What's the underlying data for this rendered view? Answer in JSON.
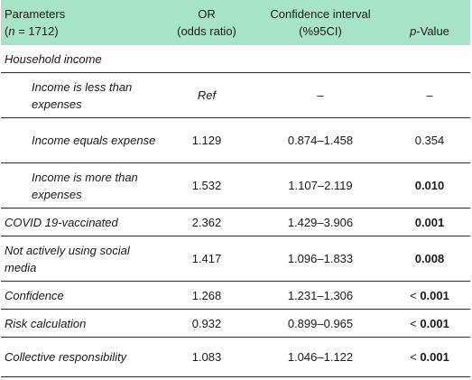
{
  "header": {
    "col1_line1": "Parameters",
    "col1_line2_n": "n",
    "col1_line2_rest": " = 1712)",
    "col1_line2_open": "(",
    "col2_line1": "OR",
    "col2_line2": "(odds ratio)",
    "col3_line1": "Confidence interval",
    "col3_line2": "(%95CI)",
    "col4_p": "p",
    "col4_rest": "-Value"
  },
  "rows": [
    {
      "label": "Household income",
      "or": "",
      "ci": "",
      "p_prefix": "",
      "p": "",
      "bold": false,
      "indent": false
    },
    {
      "label": "Income is less than expenses",
      "or": "Ref",
      "ci": "–",
      "p_prefix": "",
      "p": "–",
      "bold": false,
      "indent": true
    },
    {
      "label": "Income equals expense",
      "or": "1.129",
      "ci": "0.874–1.458",
      "p_prefix": "",
      "p": "0.354",
      "bold": false,
      "indent": true
    },
    {
      "label": "Income is more than expenses",
      "or": "1.532",
      "ci": "1.107–2.119",
      "p_prefix": "",
      "p": "0.010",
      "bold": true,
      "indent": true
    },
    {
      "label": "COVID 19-vaccinated",
      "or": "2.362",
      "ci": "1.429–3.906",
      "p_prefix": "",
      "p": "0.001",
      "bold": true,
      "indent": false
    },
    {
      "label": "Not actively using social media",
      "or": "1.417",
      "ci": "1.096–1.833",
      "p_prefix": "",
      "p": "0.008",
      "bold": true,
      "indent": false
    },
    {
      "label": "Confidence",
      "or": "1.268",
      "ci": "1.231–1.306",
      "p_prefix": "< ",
      "p": "0.001",
      "bold": true,
      "indent": false
    },
    {
      "label": "Risk calculation",
      "or": "0.932",
      "ci": "0.899–0.965",
      "p_prefix": "< ",
      "p": "0.001",
      "bold": true,
      "indent": false
    },
    {
      "label": "Collective responsibility",
      "or": "1.083",
      "ci": "1.046–1.122",
      "p_prefix": "< ",
      "p": "0.001",
      "bold": true,
      "indent": false
    }
  ]
}
